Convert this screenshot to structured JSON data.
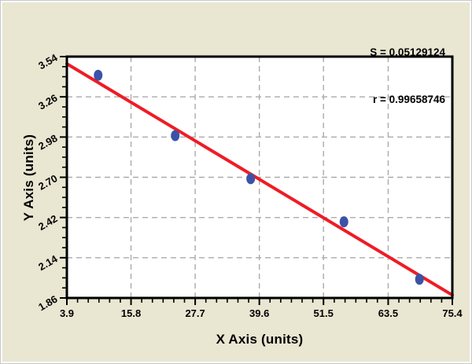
{
  "window": {
    "background_color": "#e9e6d2",
    "outer_border_color": "#c9c9c9"
  },
  "stats_annotation": {
    "s_line": "S = 0.05129124",
    "r_line": "r = 0.99658746"
  },
  "chart_data": {
    "type": "scatter",
    "title": "",
    "xlabel": "X Axis (units)",
    "ylabel": "Y Axis (units)",
    "xlim": [
      3.9,
      75.4
    ],
    "ylim": [
      1.86,
      3.54
    ],
    "x_ticks": [
      3.9,
      15.8,
      27.7,
      39.6,
      51.5,
      63.5,
      75.4
    ],
    "x_tick_labels": [
      "3.9",
      "15.8",
      "27.7",
      "39.6",
      "51.5",
      "63.5",
      "75.4"
    ],
    "y_ticks": [
      1.86,
      2.14,
      2.42,
      2.7,
      2.98,
      3.26,
      3.54
    ],
    "y_tick_labels": [
      "1.86",
      "2.14",
      "2.42",
      "2.70",
      "2.98",
      "3.26",
      "3.54"
    ],
    "x_minor_divisions": 6,
    "y_minor_divisions": 4,
    "grid": {
      "style": "dashed",
      "color": "#ababab"
    },
    "legend": "none",
    "points": [
      {
        "x": 9.7,
        "y": 3.41
      },
      {
        "x": 24.0,
        "y": 2.99
      },
      {
        "x": 38.0,
        "y": 2.69
      },
      {
        "x": 55.3,
        "y": 2.39
      },
      {
        "x": 69.3,
        "y": 1.99
      }
    ],
    "regression_line": {
      "x1": 3.9,
      "y1": 3.49,
      "x2": 75.4,
      "y2": 1.88
    },
    "annotations": [
      "S = 0.05129124",
      "r = 0.99658746"
    ],
    "colors": {
      "point": "#3b53a6",
      "line": "#ee1c25",
      "grid": "#ababab",
      "frame": "#000000",
      "plot_background": "#ffffff",
      "text": "#000000"
    }
  }
}
